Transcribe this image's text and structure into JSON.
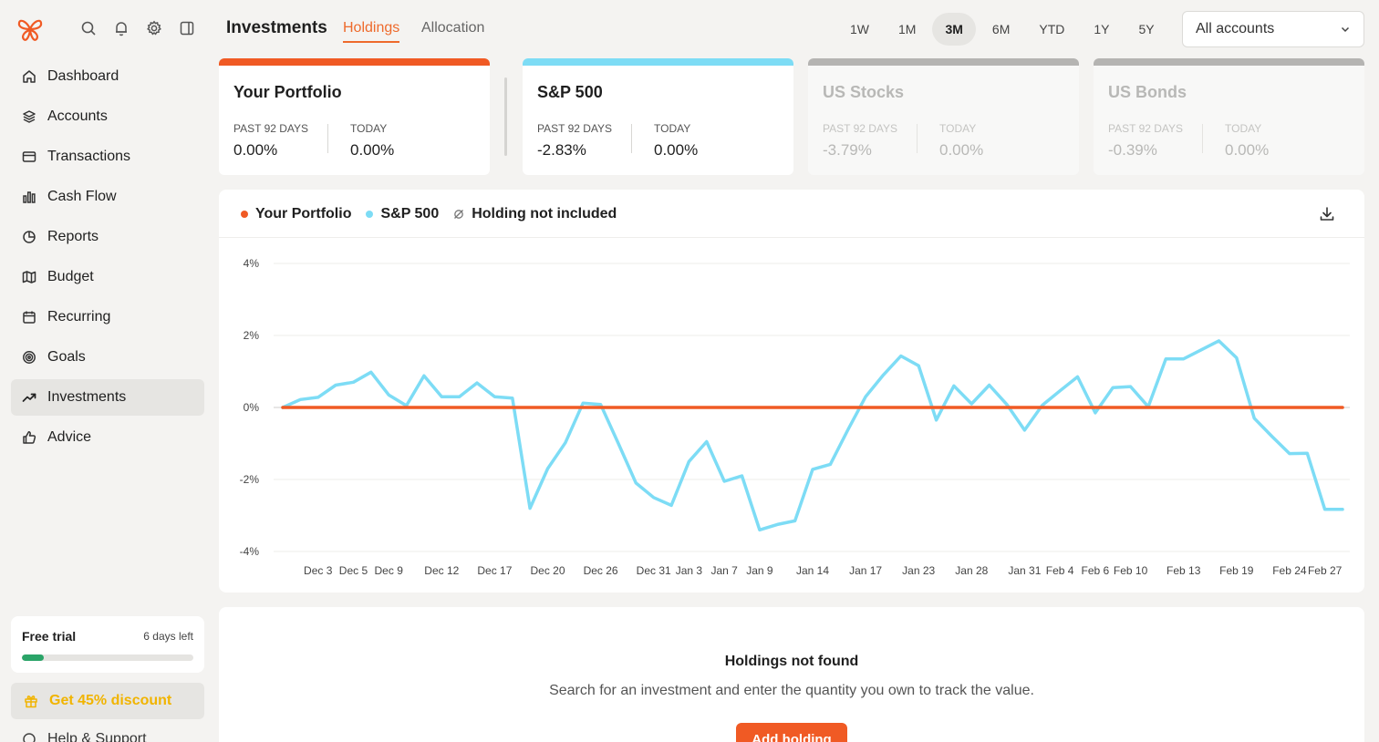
{
  "sidebar": {
    "nav": [
      {
        "label": "Dashboard",
        "icon": "home-icon"
      },
      {
        "label": "Accounts",
        "icon": "layers-icon"
      },
      {
        "label": "Transactions",
        "icon": "credit-card-icon"
      },
      {
        "label": "Cash Flow",
        "icon": "bar-chart-icon"
      },
      {
        "label": "Reports",
        "icon": "pie-chart-icon"
      },
      {
        "label": "Budget",
        "icon": "map-icon"
      },
      {
        "label": "Recurring",
        "icon": "calendar-icon"
      },
      {
        "label": "Goals",
        "icon": "target-icon"
      },
      {
        "label": "Investments",
        "icon": "trending-up-icon"
      },
      {
        "label": "Advice",
        "icon": "thumbs-up-icon"
      }
    ],
    "active": "Investments",
    "trial": {
      "title": "Free trial",
      "days_left": "6 days left",
      "progress": 0.13
    },
    "discount_label": "Get 45% discount",
    "help_label": "Help & Support"
  },
  "header": {
    "title": "Investments",
    "tabs": [
      "Holdings",
      "Allocation"
    ],
    "active_tab": "Holdings",
    "ranges": [
      "1W",
      "1M",
      "3M",
      "6M",
      "YTD",
      "1Y",
      "5Y"
    ],
    "active_range": "3M",
    "account_select": "All accounts"
  },
  "cards": [
    {
      "title": "Your Portfolio",
      "color": "#f05a24",
      "label_past": "PAST 92 DAYS",
      "value_past": "0.00%",
      "label_today": "TODAY",
      "value_today": "0.00%",
      "dim": false
    },
    {
      "title": "S&P 500",
      "color": "#7ddcf5",
      "label_past": "PAST 92 DAYS",
      "value_past": "-2.83%",
      "label_today": "TODAY",
      "value_today": "0.00%",
      "dim": false
    },
    {
      "title": "US Stocks",
      "color": "#b5b4b2",
      "label_past": "PAST 92 DAYS",
      "value_past": "-3.79%",
      "label_today": "TODAY",
      "value_today": "0.00%",
      "dim": true
    },
    {
      "title": "US Bonds",
      "color": "#b5b4b2",
      "label_past": "PAST 92 DAYS",
      "value_past": "-0.39%",
      "label_today": "TODAY",
      "value_today": "0.00%",
      "dim": true
    }
  ],
  "legend": [
    {
      "label": "Your Portfolio",
      "color": "#f05a24"
    },
    {
      "label": "S&P 500",
      "color": "#7ddcf5"
    },
    {
      "label": "Holding not included",
      "icon": "empty-set-icon"
    }
  ],
  "chart_data": {
    "type": "line",
    "ylim": [
      -4,
      4
    ],
    "yticks": [
      "4%",
      "2%",
      "0%",
      "-2%",
      "-4%"
    ],
    "ytick_values": [
      4,
      2,
      0,
      -2,
      -4
    ],
    "x_ticks": [
      "Dec 3",
      "Dec 5",
      "Dec 9",
      "Dec 12",
      "Dec 17",
      "Dec 20",
      "Dec 26",
      "Dec 31",
      "Jan 3",
      "Jan 7",
      "Jan 9",
      "Jan 14",
      "Jan 17",
      "Jan 23",
      "Jan 28",
      "Jan 31",
      "Feb 4",
      "Feb 6",
      "Feb 10",
      "Feb 13",
      "Feb 19",
      "Feb 24",
      "Feb 27"
    ],
    "x_tick_index": [
      2,
      4,
      6,
      9,
      12,
      15,
      18,
      21,
      23,
      25,
      27,
      30,
      33,
      36,
      39,
      42,
      44,
      46,
      48,
      51,
      54,
      57,
      59
    ],
    "series": [
      {
        "name": "S&P 500",
        "color": "#7ddcf5",
        "values": [
          0,
          0.22,
          0.28,
          0.62,
          0.7,
          0.98,
          0.35,
          0.05,
          0.88,
          0.3,
          0.3,
          0.68,
          0.3,
          0.26,
          -2.8,
          -1.7,
          -0.98,
          0.12,
          0.08,
          -1.0,
          -2.1,
          -2.5,
          -2.72,
          -1.5,
          -0.95,
          -2.05,
          -1.9,
          -3.4,
          -3.25,
          -3.15,
          -1.72,
          -1.58,
          -0.62,
          0.3,
          0.9,
          1.43,
          1.16,
          -0.35,
          0.6,
          0.1,
          0.62,
          0.08,
          -0.63,
          0.06,
          0.46,
          0.85,
          -0.15,
          0.55,
          0.58,
          0.02,
          1.35,
          1.35,
          1.6,
          1.85,
          1.38,
          -0.3,
          -0.8,
          -1.28,
          -1.27,
          -2.83,
          -2.83
        ]
      },
      {
        "name": "Your Portfolio",
        "color": "#f05a24",
        "values": [
          0,
          0,
          0,
          0,
          0,
          0,
          0,
          0,
          0,
          0,
          0,
          0,
          0,
          0,
          0,
          0,
          0,
          0,
          0,
          0,
          0,
          0,
          0,
          0,
          0,
          0,
          0,
          0,
          0,
          0,
          0,
          0,
          0,
          0,
          0,
          0,
          0,
          0,
          0,
          0,
          0,
          0,
          0,
          0,
          0,
          0,
          0,
          0,
          0,
          0,
          0,
          0,
          0,
          0,
          0,
          0,
          0,
          0,
          0,
          0,
          0
        ]
      }
    ]
  },
  "holdings": {
    "title": "Holdings not found",
    "subtitle": "Search for an investment and enter the quantity you own to track the value.",
    "add_button": "Add holding"
  }
}
